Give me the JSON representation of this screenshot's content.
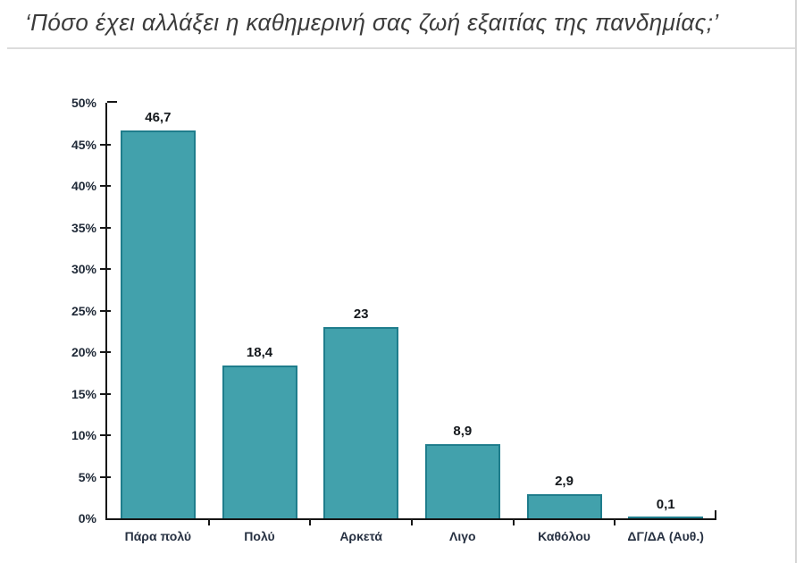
{
  "title": "‘Πόσο έχει αλλάξει η καθημερινή σας ζωή εξαιτίας της πανδημίας;’",
  "chart_data": {
    "type": "bar",
    "title": "Πόσο έχει αλλάξει η καθημερινή σας ζωή εξαιτίας της πανδημίας;",
    "categories": [
      "Πάρα πολύ",
      "Πολύ",
      "Αρκετά",
      "Λιγο",
      "Καθόλου",
      "ΔΓ/ΔΑ (Αυθ.)"
    ],
    "values": [
      46.7,
      18.4,
      23,
      8.9,
      2.9,
      0.1
    ],
    "value_labels": [
      "46,7",
      "18,4",
      "23",
      "8,9",
      "2,9",
      "0,1"
    ],
    "y_ticks": [
      "0%",
      "5%",
      "10%",
      "15%",
      "20%",
      "25%",
      "30%",
      "35%",
      "40%",
      "45%",
      "50%"
    ],
    "ylim": [
      0,
      50
    ],
    "xlabel": "",
    "ylabel": "",
    "grid": false,
    "legend_position": "none",
    "bar_fill_color": "#42A1AC",
    "bar_border_color": "#1F7D8C",
    "axis_color": "#161616",
    "label_color": "#273142",
    "value_label_color": "#14181c",
    "title_color": "#3b3b3b"
  }
}
